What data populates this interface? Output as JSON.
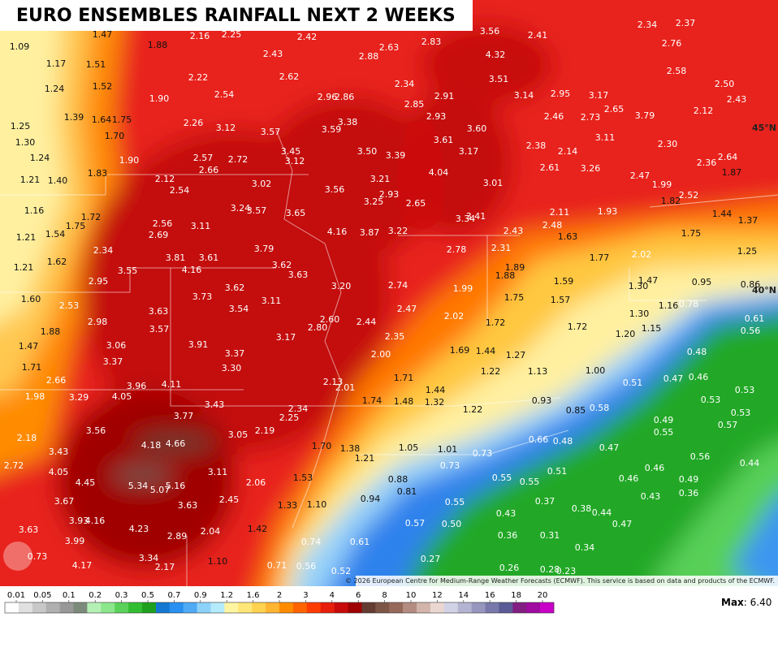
{
  "title": "EURO ENSEMBLES RAINFALL NEXT 2 WEEKS",
  "copyright": "© 2026 European Centre for Medium-Range Weather Forecasts (ECMWF). This service is based on data and products of the ECMWF.",
  "max": {
    "label": "Max",
    "value": ": 6.40"
  },
  "coordinates": [
    "45°N",
    "40°N"
  ],
  "legend": {
    "ticks": [
      0.01,
      0.05,
      0.1,
      0.2,
      0.3,
      0.5,
      0.7,
      0.9,
      1.2,
      1.6,
      2,
      3,
      4,
      6,
      8,
      10,
      12,
      14,
      16,
      18,
      20
    ],
    "colors": [
      "#ffffff",
      "#e0e0e0",
      "#c8c8c8",
      "#b0b0b0",
      "#989898",
      "#7c8a7c",
      "#b4f0b4",
      "#8ce68c",
      "#5ad25a",
      "#32be32",
      "#1ea01e",
      "#1478d2",
      "#2890f0",
      "#50aaf5",
      "#8cd2fa",
      "#b4ebfa",
      "#fff5a0",
      "#ffe678",
      "#ffd250",
      "#ffb432",
      "#ff8c00",
      "#ff6400",
      "#ff3c00",
      "#e61e0a",
      "#c80a0a",
      "#a00000",
      "#643c32",
      "#7d5546",
      "#96695a",
      "#b48c82",
      "#d2b4aa",
      "#ebd7d2",
      "#d2d2e6",
      "#b4b4d2",
      "#9696be",
      "#7878aa",
      "#5a5a96",
      "#821e82",
      "#a00aa0",
      "#c800c8"
    ]
  },
  "labels": [
    "1.09",
    "1.17",
    "1.24",
    "1.25",
    "1.30",
    "1.24",
    "1.21",
    "1.40",
    "1.16",
    "1.21",
    "1.54",
    "1.21",
    "1.62",
    "1.60",
    "1.88",
    "1.47",
    "1.71",
    "2.66",
    "1.98",
    "2.18",
    "2.72",
    "3.63",
    "1.47",
    "1.51",
    "1.52",
    "1.39",
    "1.64",
    "1.75",
    "1.70",
    "1.90",
    "1.83",
    "1.72",
    "1.75",
    "2.34",
    "2.95",
    "2.53",
    "2.98",
    "3.06",
    "3.37",
    "3.29",
    "4.05",
    "3.56",
    "3.43",
    "4.05",
    "4.45",
    "3.67",
    "3.93",
    "4.16",
    "3.99",
    "4.17",
    "1.88",
    "2.16",
    "2.25",
    "2.22",
    "1.90",
    "2.26",
    "2.54",
    "3.12",
    "2.57",
    "2.66",
    "2.72",
    "2.12",
    "2.54",
    "3.02",
    "3.24",
    "3.57",
    "2.56",
    "3.11",
    "2.69",
    "3.81",
    "3.61",
    "4.16",
    "3.55",
    "3.79",
    "3.62",
    "3.63",
    "3.73",
    "3.62",
    "3.54",
    "3.63",
    "3.57",
    "3.91",
    "3.37",
    "3.30",
    "3.96",
    "4.11",
    "3.43",
    "3.77",
    "4.18",
    "4.66",
    "3.05",
    "3.11",
    "5.34",
    "5.07",
    "5.16",
    "3.63",
    "2.45",
    "4.23",
    "2.89",
    "2.04",
    "3.34",
    "2.17",
    "1.10",
    "2.43",
    "2.62",
    "2.42",
    "2.88",
    "2.63",
    "2.83",
    "2.96",
    "2.86",
    "3.57",
    "3.59",
    "3.38",
    "3.45",
    "3.12",
    "3.50",
    "3.39",
    "3.56",
    "3.21",
    "3.25",
    "2.93",
    "3.65",
    "4.16",
    "3.87",
    "3.22",
    "3.20",
    "3.11",
    "2.74",
    "2.60",
    "2.80",
    "3.17",
    "2.44",
    "2.47",
    "2.35",
    "2.00",
    "2.13",
    "2.01",
    "1.71",
    "2.34",
    "2.25",
    "2.19",
    "2.06",
    "1.74",
    "1.48",
    "1.44",
    "1.32",
    "1.70",
    "1.38",
    "1.21",
    "1.05",
    "1.01",
    "1.53",
    "1.33",
    "1.10",
    "1.42",
    "0.74",
    "0.71",
    "0.56",
    "0.61",
    "0.52",
    "0.94",
    "0.88",
    "0.81",
    "0.57",
    "0.50",
    "0.55",
    "0.73",
    "0.73",
    "0.27",
    "2.65",
    "2.34",
    "2.85",
    "2.91",
    "2.93",
    "3.61",
    "3.60",
    "3.17",
    "4.04",
    "3.01",
    "3.34",
    "3.41",
    "2.78",
    "1.99",
    "2.02",
    "2.31",
    "2.43",
    "1.89",
    "1.88",
    "1.75",
    "1.72",
    "1.69",
    "1.44",
    "1.27",
    "1.22",
    "1.13",
    "1.22",
    "0.93",
    "3.56",
    "4.32",
    "3.51",
    "2.41",
    "3.14",
    "2.95",
    "3.17",
    "2.46",
    "2.73",
    "2.65",
    "3.79",
    "3.11",
    "2.38",
    "2.14",
    "2.61",
    "3.26",
    "2.47",
    "1.99",
    "2.30",
    "2.11",
    "2.48",
    "1.63",
    "1.93",
    "1.77",
    "1.59",
    "1.57",
    "1.72",
    "1.00",
    "0.85",
    "0.58",
    "2.02",
    "1.47",
    "1.30",
    "1.30",
    "1.20",
    "1.15",
    "0.51",
    "0.47",
    "0.46",
    "0.48",
    "0.66",
    "0.48",
    "0.47",
    "0.51",
    "0.55",
    "0.55",
    "0.37",
    "0.43",
    "0.38",
    "0.44",
    "0.46",
    "0.46",
    "0.43",
    "0.47",
    "0.36",
    "0.31",
    "0.34",
    "0.26",
    "0.28",
    "0.23",
    "2.34",
    "2.37",
    "2.76",
    "2.58",
    "2.50",
    "2.43",
    "2.12",
    "2.36",
    "2.64",
    "1.87",
    "1.82",
    "2.52",
    "1.44",
    "1.37",
    "1.75",
    "1.25",
    "0.95",
    "0.86",
    "1.16",
    "0.78",
    "0.61",
    "0.56",
    "0.53",
    "0.53",
    "0.53",
    "0.57",
    "0.49",
    "0.55",
    "0.56",
    "0.49",
    "0.36",
    "0.44",
    "0.73"
  ]
}
